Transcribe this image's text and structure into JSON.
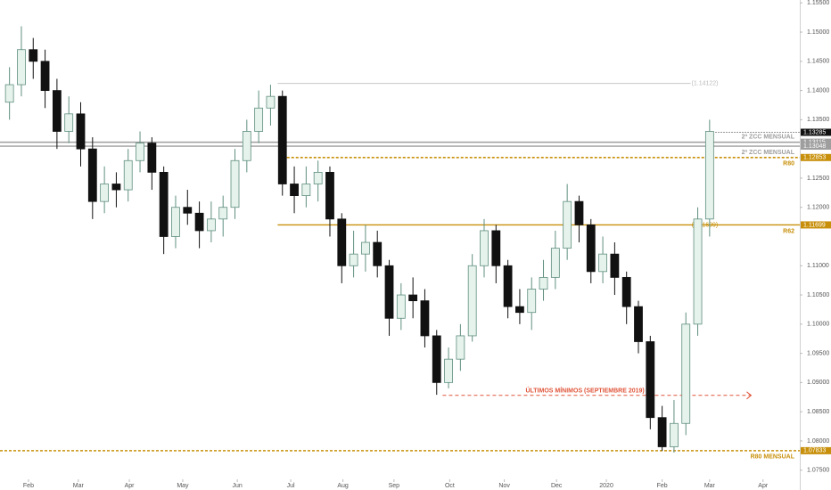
{
  "chart_data": {
    "type": "candlestick",
    "categories": [
      null,
      null,
      null,
      null,
      null,
      null,
      null,
      null,
      null,
      null,
      null,
      null,
      null,
      null,
      null,
      null,
      null,
      null,
      null,
      null,
      null,
      null,
      null,
      null,
      null,
      null,
      null,
      null,
      null,
      null,
      null,
      null,
      null,
      null,
      null,
      null,
      null,
      null,
      null,
      null,
      null,
      null,
      null,
      null,
      null,
      null,
      null,
      null,
      null,
      null,
      null,
      null,
      null,
      null,
      null,
      null,
      null,
      null,
      null,
      null
    ],
    "open": [
      1.138,
      1.141,
      1.147,
      1.145,
      1.14,
      1.133,
      1.136,
      1.13,
      1.121,
      1.124,
      1.123,
      1.128,
      1.131,
      1.126,
      1.115,
      1.12,
      1.119,
      1.116,
      1.118,
      1.12,
      1.128,
      1.133,
      1.137,
      1.139,
      1.124,
      1.122,
      1.124,
      1.126,
      1.118,
      1.11,
      1.112,
      1.114,
      1.11,
      1.101,
      1.105,
      1.104,
      1.098,
      1.09,
      1.094,
      1.098,
      1.11,
      1.116,
      1.11,
      1.103,
      1.102,
      1.106,
      1.108,
      1.113,
      1.121,
      1.117,
      1.109,
      1.112,
      1.108,
      1.103,
      1.097,
      1.084,
      1.079,
      1.083,
      1.1,
      1.118
    ],
    "high": [
      1.144,
      1.151,
      1.149,
      1.147,
      1.142,
      1.139,
      1.138,
      1.132,
      1.127,
      1.126,
      1.13,
      1.133,
      1.132,
      1.127,
      1.122,
      1.123,
      1.121,
      1.121,
      1.122,
      1.13,
      1.135,
      1.14,
      1.141,
      1.14,
      1.127,
      1.127,
      1.128,
      1.127,
      1.119,
      1.116,
      1.117,
      1.116,
      1.111,
      1.107,
      1.108,
      1.106,
      1.099,
      1.096,
      1.1,
      1.112,
      1.118,
      1.117,
      1.111,
      1.106,
      1.108,
      1.111,
      1.116,
      1.124,
      1.122,
      1.118,
      1.115,
      1.114,
      1.109,
      1.104,
      1.098,
      1.086,
      1.087,
      1.102,
      1.12,
      1.135
    ],
    "low": [
      1.135,
      1.139,
      1.142,
      1.137,
      1.13,
      1.131,
      1.127,
      1.118,
      1.119,
      1.12,
      1.121,
      1.126,
      1.123,
      1.112,
      1.113,
      1.117,
      1.113,
      1.114,
      1.115,
      1.118,
      1.126,
      1.131,
      1.134,
      1.122,
      1.119,
      1.12,
      1.121,
      1.115,
      1.107,
      1.108,
      1.109,
      1.108,
      1.098,
      1.099,
      1.101,
      1.096,
      1.0879,
      1.089,
      1.092,
      1.097,
      1.108,
      1.107,
      1.101,
      1.1,
      1.099,
      1.104,
      1.106,
      1.111,
      1.114,
      1.107,
      1.107,
      1.105,
      1.1,
      1.095,
      1.082,
      1.0783,
      1.078,
      1.081,
      1.098,
      1.115
    ],
    "close": [
      1.141,
      1.147,
      1.145,
      1.14,
      1.133,
      1.136,
      1.13,
      1.121,
      1.124,
      1.123,
      1.128,
      1.131,
      1.126,
      1.115,
      1.12,
      1.119,
      1.116,
      1.118,
      1.12,
      1.128,
      1.133,
      1.137,
      1.139,
      1.124,
      1.122,
      1.124,
      1.126,
      1.118,
      1.11,
      1.112,
      1.114,
      1.11,
      1.101,
      1.105,
      1.104,
      1.098,
      1.09,
      1.094,
      1.098,
      1.11,
      1.116,
      1.11,
      1.103,
      1.102,
      1.106,
      1.108,
      1.113,
      1.121,
      1.117,
      1.109,
      1.112,
      1.108,
      1.103,
      1.097,
      1.084,
      1.079,
      1.083,
      1.1,
      1.118,
      1.133
    ],
    "up_color": "#e6f2ec",
    "up_border": "#5f8f7f",
    "down_color": "#111111",
    "xlim": [
      -0.8,
      66.6
    ],
    "xticks": [
      {
        "value": 1.6,
        "label": "Feb"
      },
      {
        "value": 5.8,
        "label": "Mar"
      },
      {
        "value": 10.1,
        "label": "Apr"
      },
      {
        "value": 14.6,
        "label": "May"
      },
      {
        "value": 19.2,
        "label": "Jun"
      },
      {
        "value": 23.7,
        "label": "Jul"
      },
      {
        "value": 28.1,
        "label": "Aug"
      },
      {
        "value": 32.4,
        "label": "Sep"
      },
      {
        "value": 37.1,
        "label": "Oct"
      },
      {
        "value": 41.7,
        "label": "Nov"
      },
      {
        "value": 46.1,
        "label": "Dec"
      },
      {
        "value": 50.3,
        "label": "2020"
      },
      {
        "value": 55.0,
        "label": "Feb"
      },
      {
        "value": 59.0,
        "label": "Mar"
      },
      {
        "value": 63.5,
        "label": "Apr"
      }
    ],
    "ylim": [
      1.0716,
      1.1555
    ],
    "yticks": [
      {
        "value": 1.155,
        "label": "1.15500"
      },
      {
        "value": 1.15,
        "label": "1.15000"
      },
      {
        "value": 1.145,
        "label": "1.14500"
      },
      {
        "value": 1.14,
        "label": "1.14000"
      },
      {
        "value": 1.135,
        "label": "1.13500"
      },
      {
        "value": 1.125,
        "label": "1.12500"
      },
      {
        "value": 1.12,
        "label": "1.12000"
      },
      {
        "value": 1.11,
        "label": "1.11000"
      },
      {
        "value": 1.105,
        "label": "1.10500"
      },
      {
        "value": 1.1,
        "label": "1.10000"
      },
      {
        "value": 1.095,
        "label": "1.09500"
      },
      {
        "value": 1.09,
        "label": "1.09000"
      },
      {
        "value": 1.085,
        "label": "1.08500"
      },
      {
        "value": 1.08,
        "label": "1.08000"
      },
      {
        "value": 1.075,
        "label": "1.07500"
      }
    ],
    "last_price": 1.13285,
    "levels": [
      {
        "name": "2ª ZCC MENSUAL",
        "value": 1.13115,
        "color": "#9e9e9e",
        "dashed": false
      },
      {
        "name": "2ª ZCC MENSUAL",
        "value": 1.13048,
        "color": "#9e9e9e",
        "dashed": false
      },
      {
        "name": "R80",
        "value": 1.12853,
        "color": "#c8900a",
        "dashed": true
      },
      {
        "name": "R62",
        "value": 1.11699,
        "color": "#c8900a",
        "dashed": false,
        "note": "(1.11699)"
      },
      {
        "name": "R80 MENSUAL",
        "value": 1.07833,
        "color": "#c8900a",
        "dashed": true
      }
    ],
    "reference": {
      "value": 1.14122,
      "label": "(1.14122)",
      "color": "#c8c8c8"
    },
    "annotation": {
      "text": "ÚLTIMOS MÍNIMOS (SEPTIEMBRE 2019)",
      "value": 1.0878,
      "color": "#e0553a"
    }
  }
}
